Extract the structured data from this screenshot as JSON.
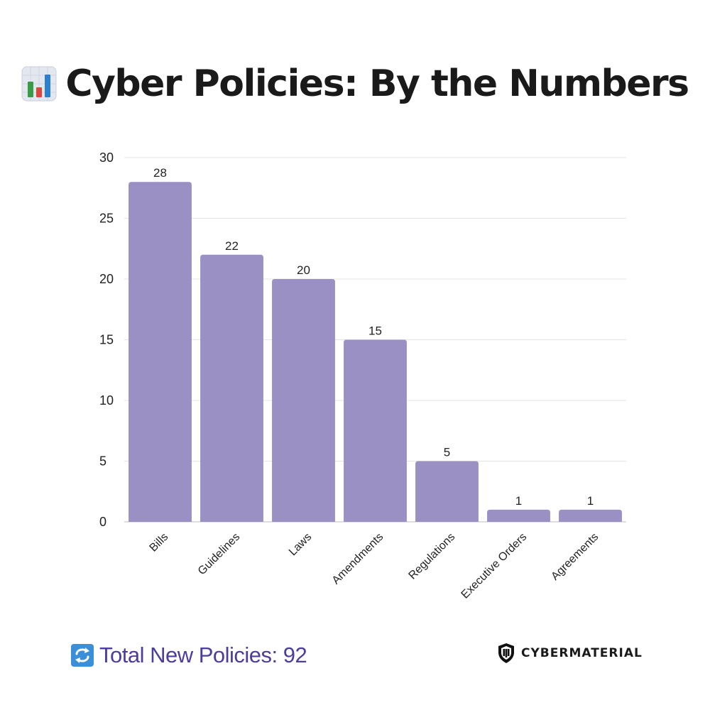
{
  "header": {
    "icon": "bar-chart-emoji-icon",
    "title": "Cyber Policies: By the Numbers"
  },
  "chart_data": {
    "type": "bar",
    "title": "Cyber Policies: By the Numbers",
    "categories": [
      "Bills",
      "Guidelines",
      "Laws",
      "Amendments",
      "Regulations",
      "Executive Orders",
      "Agreements"
    ],
    "values": [
      28,
      22,
      20,
      15,
      5,
      1,
      1
    ],
    "xlabel": "",
    "ylabel": "",
    "ylim": [
      0,
      30
    ],
    "yticks": [
      0,
      5,
      10,
      15,
      20,
      25,
      30
    ],
    "grid": true,
    "data_labels": true,
    "bar_color": "#9b90c4"
  },
  "footer": {
    "icon": "refresh-icon",
    "total_text": "Total New Policies: 92",
    "total_color": "#4b3e9c"
  },
  "brand": {
    "icon": "cybermaterial-shield-icon",
    "name": "CYBERMATERIAL"
  }
}
